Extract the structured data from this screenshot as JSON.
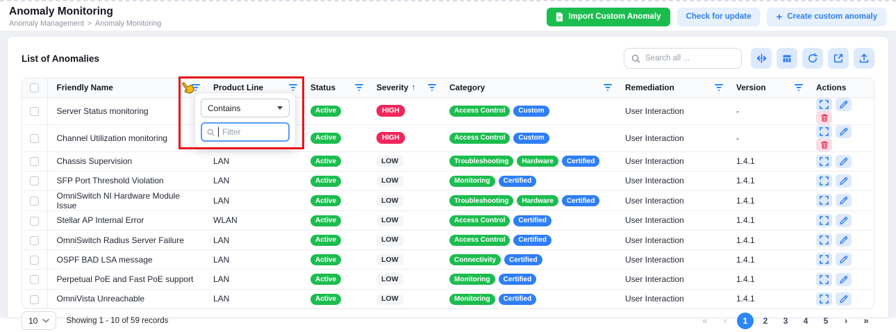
{
  "header": {
    "title": "Anomaly Monitoring",
    "breadcrumb": [
      "Anomaly Management",
      "Anomaly Monitoring"
    ],
    "actions": {
      "import": "Import Custom Anomaly",
      "check_update": "Check for update",
      "create": "Create custom anomaly"
    }
  },
  "panel": {
    "title": "List of Anomalies",
    "search_placeholder": "Search all ..."
  },
  "filter_popup": {
    "operator": "Contains",
    "input_placeholder": "Filter"
  },
  "table": {
    "columns": [
      {
        "label": "Friendly Name",
        "filter": true
      },
      {
        "label": "Product Line",
        "filter": true
      },
      {
        "label": "Status",
        "filter": true
      },
      {
        "label": "Severity",
        "filter": true,
        "sort": "asc"
      },
      {
        "label": "Category",
        "filter": true
      },
      {
        "label": "Remediation",
        "filter": true
      },
      {
        "label": "Version",
        "filter": true
      },
      {
        "label": "Actions",
        "filter": false
      }
    ],
    "rows": [
      {
        "name": "Server Status monitoring",
        "product_line": "",
        "status": "Active",
        "severity": "HIGH",
        "categories": [
          {
            "label": "Access Control",
            "color": "green"
          },
          {
            "label": "Custom",
            "color": "blue"
          }
        ],
        "remediation": "User Interaction",
        "version": "-",
        "deletable": true
      },
      {
        "name": "Channel Utilization monitoring",
        "product_line": "",
        "status": "Active",
        "severity": "HIGH",
        "categories": [
          {
            "label": "Access Control",
            "color": "green"
          },
          {
            "label": "Custom",
            "color": "blue"
          }
        ],
        "remediation": "User Interaction",
        "version": "-",
        "deletable": true
      },
      {
        "name": "Chassis Supervision",
        "product_line": "LAN",
        "status": "Active",
        "severity": "LOW",
        "categories": [
          {
            "label": "Troubleshooting",
            "color": "green"
          },
          {
            "label": "Hardware",
            "color": "green"
          },
          {
            "label": "Certified",
            "color": "blue"
          }
        ],
        "remediation": "User Interaction",
        "version": "1.4.1",
        "deletable": false
      },
      {
        "name": "SFP Port Threshold Violation",
        "product_line": "LAN",
        "status": "Active",
        "severity": "LOW",
        "categories": [
          {
            "label": "Monitoring",
            "color": "green"
          },
          {
            "label": "Certified",
            "color": "blue"
          }
        ],
        "remediation": "User Interaction",
        "version": "1.4.1",
        "deletable": false
      },
      {
        "name": "OmniSwitch NI Hardware Module Issue",
        "product_line": "LAN",
        "status": "Active",
        "severity": "LOW",
        "categories": [
          {
            "label": "Troubleshooting",
            "color": "green"
          },
          {
            "label": "Hardware",
            "color": "green"
          },
          {
            "label": "Certified",
            "color": "blue"
          }
        ],
        "remediation": "User Interaction",
        "version": "1.4.1",
        "deletable": false
      },
      {
        "name": "Stellar AP Internal Error",
        "product_line": "WLAN",
        "status": "Active",
        "severity": "LOW",
        "categories": [
          {
            "label": "Access Control",
            "color": "green"
          },
          {
            "label": "Certified",
            "color": "blue"
          }
        ],
        "remediation": "User Interaction",
        "version": "1.4.1",
        "deletable": false
      },
      {
        "name": "OmniSwitch Radius Server Failure",
        "product_line": "LAN",
        "status": "Active",
        "severity": "LOW",
        "categories": [
          {
            "label": "Access Control",
            "color": "green"
          },
          {
            "label": "Certified",
            "color": "blue"
          }
        ],
        "remediation": "User Interaction",
        "version": "1.4.1",
        "deletable": false
      },
      {
        "name": "OSPF BAD LSA message",
        "product_line": "LAN",
        "status": "Active",
        "severity": "LOW",
        "categories": [
          {
            "label": "Connectivity",
            "color": "green"
          },
          {
            "label": "Certified",
            "color": "blue"
          }
        ],
        "remediation": "User Interaction",
        "version": "1.4.1",
        "deletable": false
      },
      {
        "name": "Perpetual PoE and Fast PoE support",
        "product_line": "LAN",
        "status": "Active",
        "severity": "LOW",
        "categories": [
          {
            "label": "Monitoring",
            "color": "green"
          },
          {
            "label": "Certified",
            "color": "blue"
          }
        ],
        "remediation": "User Interaction",
        "version": "1.4.1",
        "deletable": false
      },
      {
        "name": "OmniVista Unreachable",
        "product_line": "LAN",
        "status": "Active",
        "severity": "LOW",
        "categories": [
          {
            "label": "Monitoring",
            "color": "green"
          },
          {
            "label": "Certified",
            "color": "blue"
          }
        ],
        "remediation": "User Interaction",
        "version": "1.4.1",
        "deletable": false
      }
    ]
  },
  "footer": {
    "page_size": "10",
    "summary": "Showing 1 - 10 of 59 records",
    "pages": [
      "1",
      "2",
      "3",
      "4",
      "5"
    ],
    "active_page": "1"
  },
  "colors": {
    "green": "#1cbd4f",
    "red": "#f1265c",
    "blue": "#2e7ef7",
    "accent_blue": "#2f80ed",
    "annotation_red": "#e8151a"
  }
}
